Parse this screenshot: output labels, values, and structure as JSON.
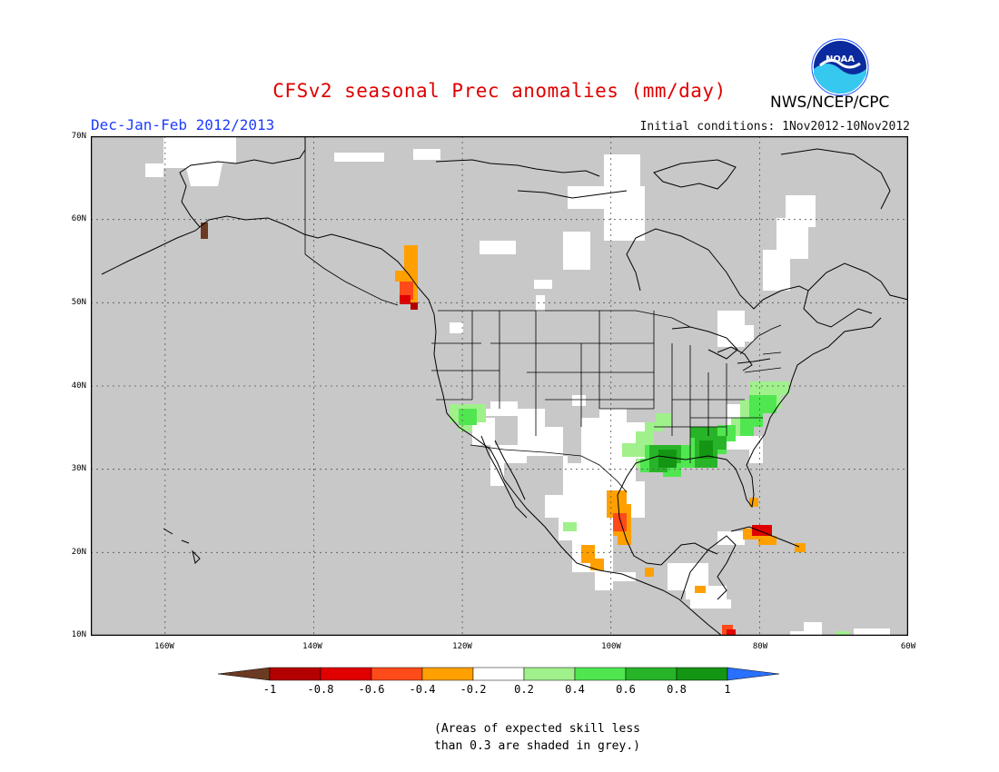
{
  "title": "CFSv2 seasonal Prec anomalies (mm/day)",
  "season": "Dec-Jan-Feb 2012/2013",
  "initial_conditions": "Initial conditions: 1Nov2012-10Nov2012",
  "agency": "NWS/NCEP/CPC",
  "logo_text": "NOAA",
  "latitude_labels": [
    "70N",
    "60N",
    "50N",
    "40N",
    "30N",
    "20N",
    "10N"
  ],
  "longitude_labels": [
    "160W",
    "140W",
    "120W",
    "100W",
    "80W",
    "60W"
  ],
  "colorbar": {
    "labels": [
      "-1",
      "-0.8",
      "-0.6",
      "-0.4",
      "-0.2",
      "0.2",
      "0.4",
      "0.6",
      "0.8",
      "1"
    ],
    "colors": [
      "#6b3a22",
      "#b40000",
      "#e00000",
      "#ff4a1a",
      "#ffa000",
      "#ffffff",
      "#a0f08c",
      "#50e650",
      "#28b428",
      "#149614",
      "#2a70ff"
    ]
  },
  "note_line1": "(Areas of expected skill less",
  "note_line2": "than 0.3 are shaded in grey.)",
  "colors": {
    "skill_mask": "#c8c8c8",
    "title": "#e00000",
    "subtitle": "#1e3cff"
  }
}
